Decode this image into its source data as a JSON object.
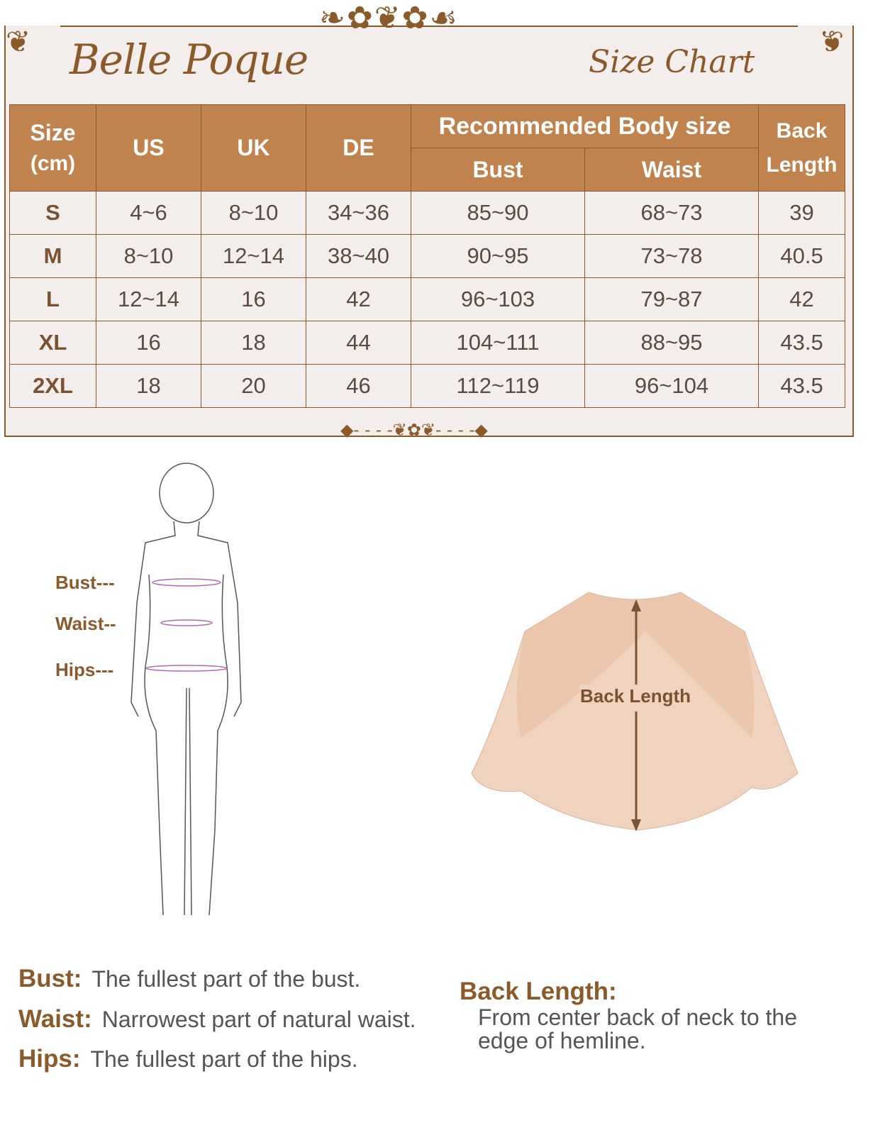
{
  "brand": "Belle Poque",
  "title": "Size Chart",
  "table": {
    "headers": {
      "size": "Size",
      "size_unit": "(cm)",
      "us": "US",
      "uk": "UK",
      "de": "DE",
      "recommended": "Recommended Body size",
      "bust": "Bust",
      "waist": "Waist",
      "back_length_1": "Back",
      "back_length_2": "Length"
    },
    "rows": [
      [
        "S",
        "4~6",
        "8~10",
        "34~36",
        "85~90",
        "68~73",
        "39"
      ],
      [
        "M",
        "8~10",
        "12~14",
        "38~40",
        "90~95",
        "73~78",
        "40.5"
      ],
      [
        "L",
        "12~14",
        "16",
        "42",
        "96~103",
        "79~87",
        "42"
      ],
      [
        "XL",
        "16",
        "18",
        "44",
        "104~111",
        "88~95",
        "43.5"
      ],
      [
        "2XL",
        "18",
        "20",
        "46",
        "112~119",
        "96~104",
        "43.5"
      ]
    ]
  },
  "figure": {
    "bust": "Bust---",
    "waist": "Waist--",
    "hips": "Hips---"
  },
  "product": {
    "arrow_label": "Back Length"
  },
  "definitions": {
    "bust_label": "Bust:",
    "bust_text": "The fullest part of the bust.",
    "waist_label": "Waist:",
    "waist_text": "Narrowest part of natural waist.",
    "hips_label": "Hips:",
    "hips_text": "The fullest part of the hips.",
    "back_label": "Back Length:",
    "back_text_1": "From center back of neck to the",
    "back_text_2": "edge of hemline."
  },
  "colors": {
    "header": "#c1834e",
    "brown": "#8b5a2b",
    "panel": "#f3eeeb"
  }
}
